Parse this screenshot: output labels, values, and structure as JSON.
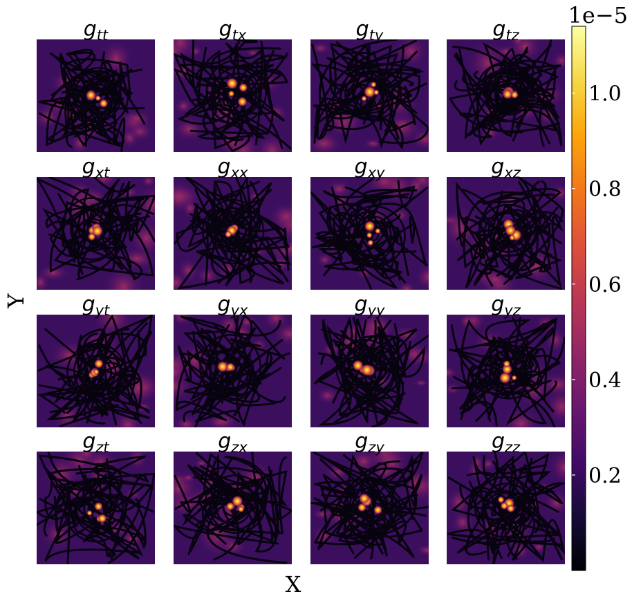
{
  "chart_data": {
    "type": "heatmap",
    "layout": "4x4 grid of panels",
    "xlabel": "X",
    "ylabel": "Y",
    "panels": [
      {
        "base": "g",
        "sub": "tt"
      },
      {
        "base": "g",
        "sub": "tx"
      },
      {
        "base": "g",
        "sub": "ty"
      },
      {
        "base": "g",
        "sub": "tz"
      },
      {
        "base": "g",
        "sub": "xt"
      },
      {
        "base": "g",
        "sub": "xx"
      },
      {
        "base": "g",
        "sub": "xy"
      },
      {
        "base": "g",
        "sub": "xz"
      },
      {
        "base": "g",
        "sub": "yt"
      },
      {
        "base": "g",
        "sub": "yx"
      },
      {
        "base": "g",
        "sub": "yy"
      },
      {
        "base": "g",
        "sub": "yz"
      },
      {
        "base": "g",
        "sub": "zt"
      },
      {
        "base": "g",
        "sub": "zx"
      },
      {
        "base": "g",
        "sub": "zy"
      },
      {
        "base": "g",
        "sub": "zz"
      }
    ],
    "colorbar": {
      "colormap": "inferno",
      "exponent_label": "1e−5",
      "range": [
        0.0,
        1.14
      ],
      "ticks": [
        {
          "value": 0.2,
          "label": "0.2"
        },
        {
          "value": 0.4,
          "label": "0.4"
        },
        {
          "value": 0.6,
          "label": "0.6"
        },
        {
          "value": 0.8,
          "label": "0.8"
        },
        {
          "value": 1.0,
          "label": "1.0"
        }
      ]
    },
    "axes_ticks_visible": false,
    "grid": false
  }
}
